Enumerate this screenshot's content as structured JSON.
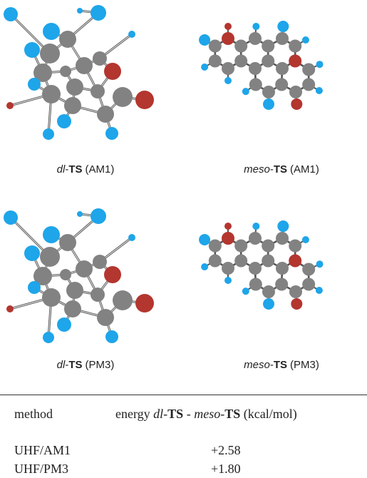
{
  "captions": [
    {
      "italic": "dl",
      "joiner": "-",
      "bold": "TS",
      "method": "(AM1)"
    },
    {
      "italic": "meso",
      "joiner": "-",
      "bold": "TS",
      "method": "(AM1)"
    },
    {
      "italic": "dl",
      "joiner": "-",
      "bold": "TS",
      "method": "(PM3)"
    },
    {
      "italic": "meso",
      "joiner": "-",
      "bold": "TS",
      "method": "(PM3)"
    }
  ],
  "table": {
    "header": {
      "method": "method",
      "energy_parts": [
        "energy ",
        "dl",
        "-",
        "TS",
        " - ",
        "meso",
        "-",
        "TS",
        " (kcal/mol)"
      ]
    },
    "rows": [
      [
        "UHF/AM1",
        "+2.58"
      ],
      [
        "UHF/PM3",
        "+1.80"
      ]
    ]
  }
}
